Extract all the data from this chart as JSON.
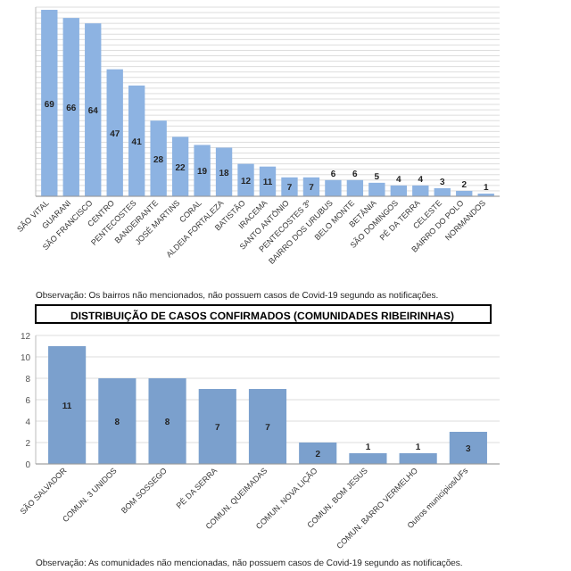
{
  "chart_data": [
    {
      "type": "bar",
      "categories": [
        "SÃO VITAL",
        "GUARANI",
        "SÃO FRANCISCO",
        "CENTRO",
        "PENTECOSTES",
        "BANDEIRANTE",
        "JOSÉ MARTINS",
        "CORAL",
        "ALDEIA FORTALEZA",
        "BATISTÃO",
        "IRACEMA",
        "SANTO ANTÔNIO",
        "PENTECOSTES 3º",
        "BAIRRO DOS URUBUS",
        "BELO MONTE",
        "BETÂNIA",
        "SÃO DOMINGOS",
        "PÉ DA TERRA",
        "CELESTE",
        "BAIRRO DO POLO",
        "NORMANDOS"
      ],
      "values": [
        69,
        66,
        64,
        47,
        41,
        28,
        22,
        19,
        18,
        12,
        11,
        7,
        7,
        6,
        6,
        5,
        4,
        4,
        3,
        2,
        1
      ],
      "color": "#8db3e2",
      "ylim": [
        0,
        70
      ],
      "grid": "y",
      "data_labels": true,
      "annotations": [
        "Observação: Os bairros não mencionados, não possuem casos de Covid-19 segundo as notificações."
      ]
    },
    {
      "type": "bar",
      "title": "DISTRIBUIÇÃO DE CASOS CONFIRMADOS (COMUNIDADES RIBEIRINHAS)",
      "categories": [
        "SÃO SALVADOR",
        "COMUN. 3 UNIDOS",
        "BOM SOSSEGO",
        "PÉ DA SERRA",
        "COMUN. QUEIMADAS",
        "COMUN. NOVA LIÇÃO",
        "COMUN. BOM JESUS",
        "COMUN. BARRO VERMELHO",
        "Outros municípios/UFs"
      ],
      "values": [
        11,
        8,
        8,
        7,
        7,
        2,
        1,
        1,
        3
      ],
      "color": "#7ba0cd",
      "ylim": [
        0,
        12
      ],
      "yticks": [
        0,
        2,
        4,
        6,
        8,
        10,
        12
      ],
      "grid": "y",
      "data_labels": true,
      "annotations": [
        "Observação: As comunidades não mencionadas, não possuem casos de Covid-19 segundo as notificações."
      ]
    }
  ]
}
